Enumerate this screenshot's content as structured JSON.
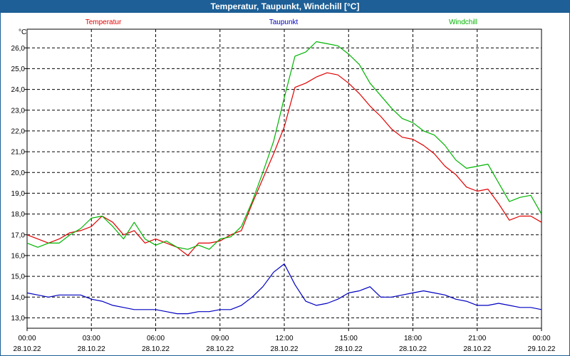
{
  "chart_data": {
    "type": "line",
    "title": "Temperatur, Taupunkt, Windchill [°C]",
    "ylabel": "°C",
    "ylim": [
      12.5,
      26.9
    ],
    "yticks": [
      13.0,
      14.0,
      15.0,
      16.0,
      17.0,
      18.0,
      19.0,
      20.0,
      21.0,
      22.0,
      23.0,
      24.0,
      25.0,
      26.0
    ],
    "ytick_labels": [
      "13,0",
      "14,0",
      "15,0",
      "16,0",
      "17,0",
      "18,0",
      "19,0",
      "20,0",
      "21,0",
      "22,0",
      "23,0",
      "24,0",
      "25,0",
      "26,0"
    ],
    "xlim": [
      0,
      24
    ],
    "xticks": [
      {
        "time": "00:00",
        "date": "28.10.22"
      },
      {
        "time": "03:00",
        "date": "28.10.22"
      },
      {
        "time": "06:00",
        "date": "28.10.22"
      },
      {
        "time": "09:00",
        "date": "28.10.22"
      },
      {
        "time": "12:00",
        "date": "28.10.22"
      },
      {
        "time": "15:00",
        "date": "28.10.22"
      },
      {
        "time": "18:00",
        "date": "28.10.22"
      },
      {
        "time": "21:00",
        "date": "28.10.22"
      },
      {
        "time": "00:00",
        "date": "29.10.22"
      }
    ],
    "grid": true,
    "legend_position": "top",
    "series": [
      {
        "name": "Temperatur",
        "color": "#e00000",
        "x": [
          0,
          0.5,
          1,
          1.5,
          2,
          2.5,
          3,
          3.5,
          4,
          4.5,
          5,
          5.5,
          6,
          6.5,
          7,
          7.5,
          8,
          8.5,
          9,
          9.5,
          10,
          10.5,
          11,
          11.5,
          12,
          12.5,
          13,
          13.5,
          14,
          14.5,
          15,
          15.5,
          16,
          16.5,
          17,
          17.5,
          18,
          18.5,
          19,
          19.5,
          20,
          20.5,
          21,
          21.5,
          22,
          22.5,
          23,
          23.5,
          24
        ],
        "values": [
          17.0,
          16.8,
          16.6,
          16.8,
          17.1,
          17.2,
          17.4,
          17.9,
          17.6,
          17.0,
          17.2,
          16.6,
          16.8,
          16.6,
          16.4,
          16.0,
          16.6,
          16.6,
          16.7,
          17.0,
          17.2,
          18.5,
          19.7,
          20.9,
          22.2,
          24.1,
          24.3,
          24.6,
          24.8,
          24.7,
          24.3,
          23.8,
          23.2,
          22.7,
          22.1,
          21.7,
          21.6,
          21.3,
          20.9,
          20.3,
          19.9,
          19.3,
          19.1,
          19.2,
          18.5,
          17.7,
          17.9,
          17.9,
          17.6
        ]
      },
      {
        "name": "Taupunkt",
        "color": "#0000c0",
        "x": [
          0,
          0.5,
          1,
          1.5,
          2,
          2.5,
          3,
          3.5,
          4,
          4.5,
          5,
          5.5,
          6,
          6.5,
          7,
          7.5,
          8,
          8.5,
          9,
          9.5,
          10,
          10.5,
          11,
          11.5,
          12,
          12.5,
          13,
          13.5,
          14,
          14.5,
          15,
          15.5,
          16,
          16.5,
          17,
          17.5,
          18,
          18.5,
          19,
          19.5,
          20,
          20.5,
          21,
          21.5,
          22,
          22.5,
          23,
          23.5,
          24
        ],
        "values": [
          14.2,
          14.1,
          14.0,
          14.1,
          14.1,
          14.1,
          13.9,
          13.8,
          13.6,
          13.5,
          13.4,
          13.4,
          13.4,
          13.3,
          13.2,
          13.2,
          13.3,
          13.3,
          13.4,
          13.4,
          13.6,
          14.0,
          14.5,
          15.2,
          15.6,
          14.6,
          13.8,
          13.6,
          13.7,
          13.9,
          14.2,
          14.3,
          14.5,
          14.0,
          14.0,
          14.1,
          14.2,
          14.3,
          14.2,
          14.1,
          13.9,
          13.8,
          13.6,
          13.6,
          13.7,
          13.6,
          13.5,
          13.5,
          13.4
        ]
      },
      {
        "name": "Windchill",
        "color": "#00b400",
        "x": [
          0,
          0.5,
          1,
          1.5,
          2,
          2.5,
          3,
          3.5,
          4,
          4.5,
          5,
          5.5,
          6,
          6.5,
          7,
          7.5,
          8,
          8.5,
          9,
          9.5,
          10,
          10.5,
          11,
          11.5,
          12,
          12.5,
          13,
          13.5,
          14,
          14.5,
          15,
          15.5,
          16,
          16.5,
          17,
          17.5,
          18,
          18.5,
          19,
          19.5,
          20,
          20.5,
          21,
          21.5,
          22,
          22.5,
          23,
          23.5,
          24
        ],
        "values": [
          16.6,
          16.4,
          16.6,
          16.6,
          17.0,
          17.3,
          17.8,
          17.9,
          17.4,
          16.8,
          17.6,
          16.8,
          16.5,
          16.7,
          16.4,
          16.3,
          16.5,
          16.3,
          16.8,
          16.9,
          17.4,
          18.6,
          20.0,
          21.5,
          23.6,
          25.6,
          25.8,
          26.3,
          26.2,
          26.1,
          25.7,
          25.2,
          24.3,
          23.7,
          23.1,
          22.6,
          22.4,
          22.0,
          21.8,
          21.3,
          20.6,
          20.2,
          20.3,
          20.4,
          19.5,
          18.6,
          18.8,
          18.9,
          18.0
        ]
      }
    ]
  }
}
